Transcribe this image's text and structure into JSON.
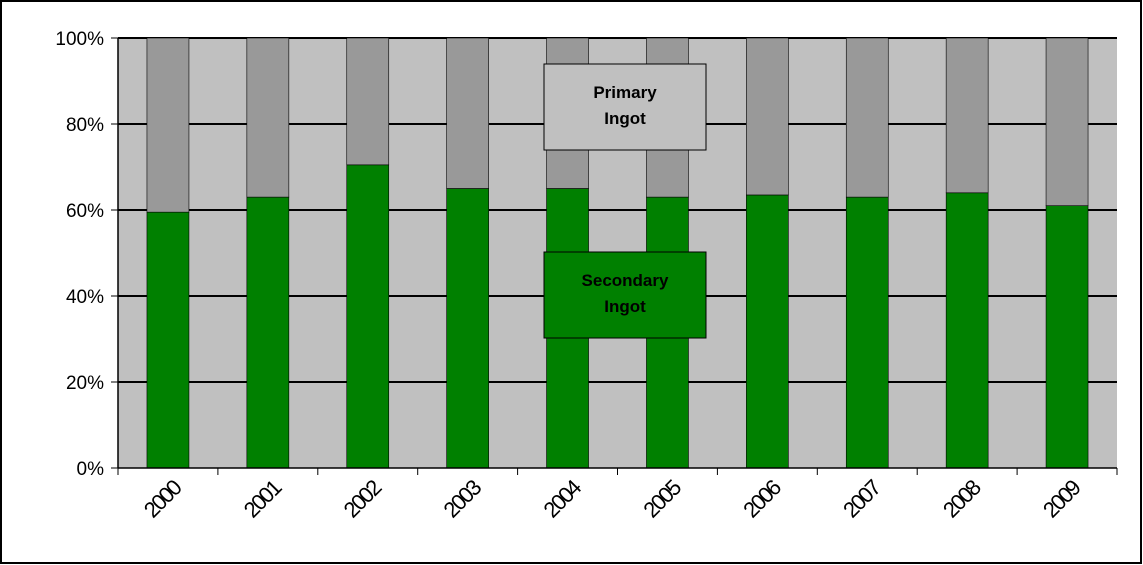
{
  "chart_data": {
    "type": "bar",
    "stacked": true,
    "normalized": true,
    "categories": [
      "2000",
      "2001",
      "2002",
      "2003",
      "2004",
      "2005",
      "2006",
      "2007",
      "2008",
      "2009"
    ],
    "series": [
      {
        "name": "Secondary Ingot",
        "color": "#008000",
        "values": [
          59.5,
          63,
          70.5,
          65,
          65,
          63,
          63.5,
          63,
          64,
          61
        ]
      },
      {
        "name": "Primary Ingot",
        "color": "#999999",
        "values": [
          40.5,
          37,
          29.5,
          35,
          35,
          37,
          36.5,
          37,
          36,
          39
        ]
      }
    ],
    "y_ticks": [
      "0%",
      "20%",
      "40%",
      "60%",
      "80%",
      "100%"
    ],
    "ylim": [
      0,
      100
    ],
    "grid": true,
    "plot_background": "#c0c0c0",
    "annotations": [
      {
        "lines": [
          "Primary",
          "Ingot"
        ],
        "fill": "#c0c0c0"
      },
      {
        "lines": [
          "Secondary",
          "Ingot"
        ],
        "fill": "#008000"
      }
    ]
  }
}
